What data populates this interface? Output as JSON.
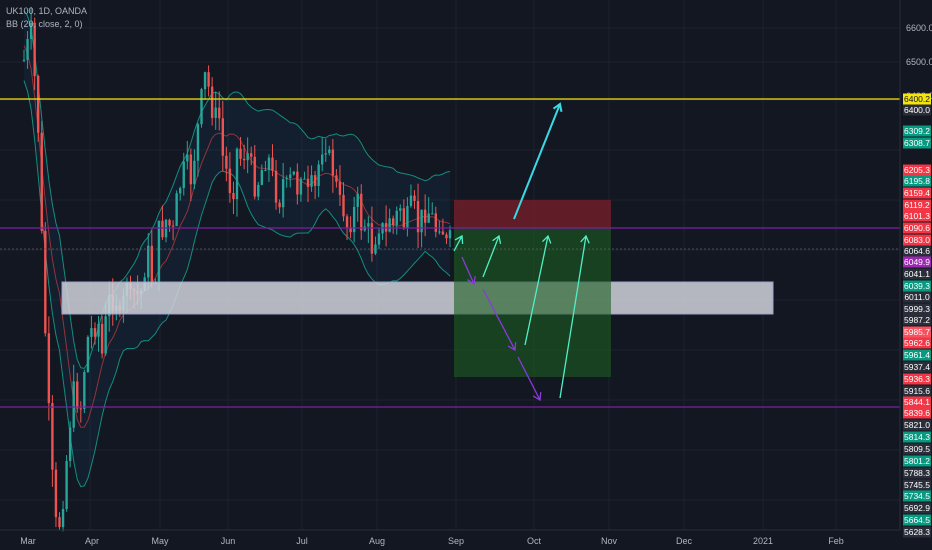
{
  "header": {
    "symbol_line": "UK100, 1D, OANDA",
    "indicator_line": "BB (20, close, 2, 0)"
  },
  "chart_data": {
    "type": "candlestick",
    "x_ticks": [
      "Mar",
      "Apr",
      "May",
      "Jun",
      "Jul",
      "Aug",
      "Sep",
      "Oct",
      "Nov",
      "Dec",
      "2021",
      "Feb"
    ],
    "y_axis_labels": [
      6600.0,
      6500.0,
      6400.0
    ],
    "y_axis_label_text": [
      "6600.0",
      "6500.0",
      "6400.0"
    ],
    "price_tags": [
      {
        "text": "6400.2",
        "color": "#f5e50b",
        "text_color": "#131722"
      },
      {
        "text": "6400.0",
        "color": "#2a2e39",
        "text_color": "#ffffff"
      },
      {
        "text": "6309.2",
        "color": "#089981",
        "text_color": "#ffffff"
      },
      {
        "text": "6308.7",
        "color": "#089981",
        "text_color": "#ffffff"
      },
      {
        "text": "6205.3",
        "color": "#f23645",
        "text_color": "#ffffff"
      },
      {
        "text": "6195.8",
        "color": "#089981",
        "text_color": "#ffffff"
      },
      {
        "text": "6159.4",
        "color": "#f23645",
        "text_color": "#ffffff"
      },
      {
        "text": "6119.2",
        "color": "#f23645",
        "text_color": "#ffffff"
      },
      {
        "text": "6101.3",
        "color": "#f23645",
        "text_color": "#ffffff"
      },
      {
        "text": "6090.6",
        "color": "#f23645",
        "text_color": "#ffffff"
      },
      {
        "text": "6083.0",
        "color": "#f23645",
        "text_color": "#ffffff"
      },
      {
        "text": "6064.6",
        "color": "#2a2e39",
        "text_color": "#ffffff"
      },
      {
        "text": "6049.9",
        "color": "#9c27b0",
        "text_color": "#ffffff"
      },
      {
        "text": "6041.1",
        "color": "#2a2e39",
        "text_color": "#ffffff"
      },
      {
        "text": "6039.3",
        "color": "#089981",
        "text_color": "#ffffff"
      },
      {
        "text": "6011.0",
        "color": "#2a2e39",
        "text_color": "#ffffff"
      },
      {
        "text": "5999.3",
        "color": "#2a2e39",
        "text_color": "#ffffff"
      },
      {
        "text": "5987.2",
        "color": "#2a2e39",
        "text_color": "#ffffff"
      },
      {
        "text": "5985.7",
        "color": "#f7525f",
        "text_color": "#ffffff"
      },
      {
        "text": "5962.6",
        "color": "#f23645",
        "text_color": "#ffffff"
      },
      {
        "text": "5961.4",
        "color": "#089981",
        "text_color": "#ffffff"
      },
      {
        "text": "5937.4",
        "color": "#2a2e39",
        "text_color": "#ffffff"
      },
      {
        "text": "5936.3",
        "color": "#f23645",
        "text_color": "#ffffff"
      },
      {
        "text": "5915.6",
        "color": "#2a2e39",
        "text_color": "#ffffff"
      },
      {
        "text": "5844.1",
        "color": "#f23645",
        "text_color": "#ffffff"
      },
      {
        "text": "5839.6",
        "color": "#f23645",
        "text_color": "#ffffff"
      },
      {
        "text": "5821.0",
        "color": "#2a2e39",
        "text_color": "#ffffff"
      },
      {
        "text": "5814.3",
        "color": "#089981",
        "text_color": "#ffffff"
      },
      {
        "text": "5809.5",
        "color": "#2a2e39",
        "text_color": "#ffffff"
      },
      {
        "text": "5801.2",
        "color": "#089981",
        "text_color": "#ffffff"
      },
      {
        "text": "5788.3",
        "color": "#2a2e39",
        "text_color": "#ffffff"
      },
      {
        "text": "5745.5",
        "color": "#2a2e39",
        "text_color": "#ffffff"
      },
      {
        "text": "5734.5",
        "color": "#089981",
        "text_color": "#ffffff"
      },
      {
        "text": "5692.9",
        "color": "#2a2e39",
        "text_color": "#ffffff"
      },
      {
        "text": "5664.5",
        "color": "#089981",
        "text_color": "#ffffff"
      },
      {
        "text": "5628.3",
        "color": "#2a2e39",
        "text_color": "#ffffff"
      }
    ],
    "horizontal_levels": [
      {
        "name": "resistance-yellow",
        "value": 6400.2,
        "color": "#f5e50b"
      },
      {
        "name": "level-purple-upper",
        "value": 6090.6,
        "color": "#7b1fa2"
      },
      {
        "name": "level-purple-lower",
        "value": 5839.6,
        "color": "#7b1fa2"
      }
    ],
    "zone": {
      "from": 5999.3,
      "to": 6039.3,
      "color": "#d1d4dc"
    },
    "position": {
      "type": "short",
      "entry": 6090.6,
      "stop": 6119.2,
      "target": 5937.4
    },
    "colors": {
      "up": "#26a69a",
      "down": "#ef5350",
      "band": "#138e7c",
      "basis": "#b23b3b",
      "arrow_cyan": "#3ad9e6",
      "arrow_teal": "#4ff0c8",
      "arrow_purple": "#8b3ad9"
    }
  }
}
